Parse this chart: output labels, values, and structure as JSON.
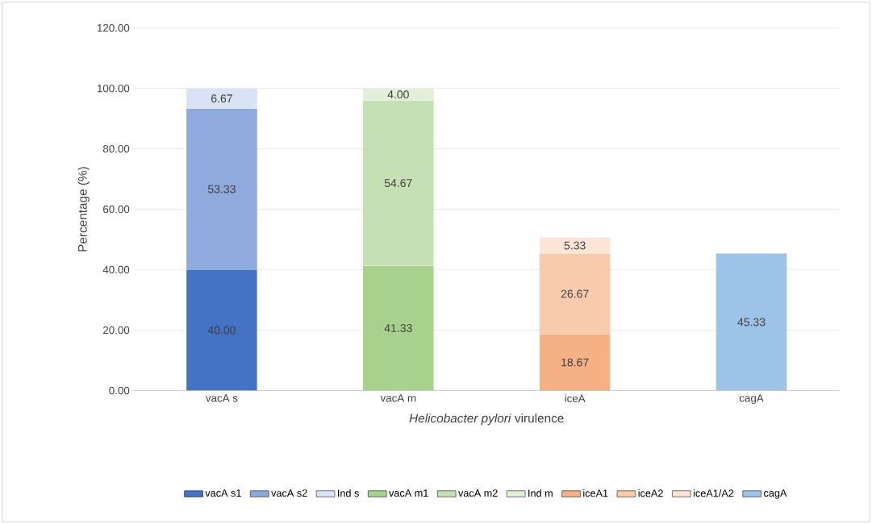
{
  "chart_data": {
    "type": "bar",
    "stacked": true,
    "xlabel": "*Helicobacter pylori* virulence",
    "ylabel": "Percentage (%)",
    "categories": [
      "vacA s",
      "vacA m",
      "iceA",
      "cagA"
    ],
    "ylim": [
      0,
      120
    ],
    "yticks": [
      {
        "value": 0,
        "label": "0.00"
      },
      {
        "value": 20,
        "label": "20.00"
      },
      {
        "value": 40,
        "label": "40.00"
      },
      {
        "value": 60,
        "label": "60.00"
      },
      {
        "value": 80,
        "label": "80.00"
      },
      {
        "value": 100,
        "label": "100.00"
      },
      {
        "value": 120,
        "label": "120.00"
      }
    ],
    "grid": "y",
    "legend": "bottom",
    "series": [
      {
        "name": "vacA s1",
        "color": "#4472c4",
        "values": [
          40.0,
          null,
          null,
          null
        ],
        "value_labels": [
          "40.00",
          null,
          null,
          null
        ]
      },
      {
        "name": "vacA s2",
        "color": "#8faadc",
        "values": [
          53.33,
          null,
          null,
          null
        ],
        "value_labels": [
          "53.33",
          null,
          null,
          null
        ]
      },
      {
        "name": "Ind s",
        "color": "#dae3f3",
        "values": [
          6.67,
          null,
          null,
          null
        ],
        "value_labels": [
          "6.67",
          null,
          null,
          null
        ]
      },
      {
        "name": "vacA m1",
        "color": "#a9d18e",
        "values": [
          null,
          41.33,
          null,
          null
        ],
        "value_labels": [
          null,
          "41.33",
          null,
          null
        ]
      },
      {
        "name": "vacA m2",
        "color": "#c5e0b4",
        "values": [
          null,
          54.67,
          null,
          null
        ],
        "value_labels": [
          null,
          "54.67",
          null,
          null
        ]
      },
      {
        "name": "Ind m",
        "color": "#e2f0d9",
        "values": [
          null,
          4.0,
          null,
          null
        ],
        "value_labels": [
          null,
          "4.00",
          null,
          null
        ]
      },
      {
        "name": "iceA1",
        "color": "#f4b183",
        "values": [
          null,
          null,
          18.67,
          null
        ],
        "value_labels": [
          null,
          null,
          "18.67",
          null
        ]
      },
      {
        "name": "iceA2",
        "color": "#f8cbad",
        "values": [
          null,
          null,
          26.67,
          null
        ],
        "value_labels": [
          null,
          null,
          "26.67",
          null
        ]
      },
      {
        "name": "iceA1/A2",
        "color": "#fbe5d6",
        "values": [
          null,
          null,
          5.33,
          null
        ],
        "value_labels": [
          null,
          null,
          "5.33",
          null
        ]
      },
      {
        "name": "cagA",
        "color": "#9dc3e6",
        "values": [
          null,
          null,
          null,
          45.33
        ],
        "value_labels": [
          null,
          null,
          null,
          "45.33"
        ]
      }
    ]
  }
}
